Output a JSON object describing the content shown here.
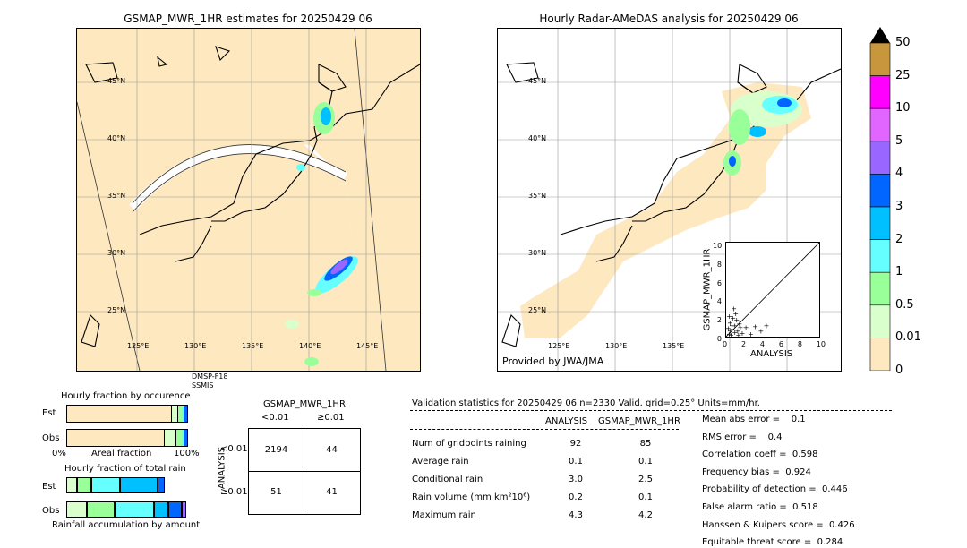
{
  "left_map": {
    "title": "GSMAP_MWR_1HR estimates for 20250429 06",
    "lat_labels": [
      "45°N",
      "40°N",
      "35°N",
      "30°N",
      "25°N"
    ],
    "lon_labels": [
      "125°E",
      "130°E",
      "135°E",
      "140°E",
      "145°E"
    ],
    "sensor_line1": "DMSP-F18",
    "sensor_line2": "SSMIS"
  },
  "right_map": {
    "title": "Hourly Radar-AMeDAS analysis for 20250429 06",
    "lat_labels": [
      "45°N",
      "40°N",
      "35°N",
      "30°N",
      "25°N"
    ],
    "lon_labels": [
      "125°E",
      "130°E",
      "135°E"
    ],
    "credit": "Provided by JWA/JMA"
  },
  "scatter": {
    "xlabel": "ANALYSIS",
    "ylabel": "GSMAP_MWR_1HR",
    "ticks": [
      "0",
      "2",
      "4",
      "6",
      "8",
      "10"
    ]
  },
  "colorbar": {
    "labels": [
      "50",
      "25",
      "10",
      "5",
      "4",
      "3",
      "2",
      "1",
      "0.5",
      "0.01",
      "0"
    ],
    "colors": [
      "#c8963c",
      "#ff00ff",
      "#e066ff",
      "#9966ff",
      "#0066ff",
      "#00c0ff",
      "#66ffff",
      "#99ff99",
      "#d9ffcc",
      "#fde8c0"
    ]
  },
  "occurrence": {
    "title": "Hourly fraction by occurence",
    "row_est": "Est",
    "row_obs": "Obs",
    "axis_left": "0%",
    "axis_mid": "Areal fraction",
    "axis_right": "100%"
  },
  "total_rain": {
    "title": "Hourly fraction of total rain",
    "row_est": "Est",
    "row_obs": "Obs",
    "axis_mid": "Rainfall accumulation by amount"
  },
  "contingency": {
    "title": "GSMAP_MWR_1HR",
    "col1": "<0.01",
    "col2": "≥0.01",
    "row_axis": "ANALYSIS",
    "row1": "<0.01",
    "row2": "≥0.01",
    "cells": [
      "2194",
      "44",
      "51",
      "41"
    ]
  },
  "validation": {
    "header": "Validation statistics for 20250429 06  n=2330 Valid. grid=0.25°  Units=mm/hr.",
    "col_analysis": "ANALYSIS",
    "col_gsmap": "GSMAP_MWR_1HR",
    "rows": [
      {
        "label": "Num of gridpoints raining",
        "a": "92",
        "g": "85"
      },
      {
        "label": "Average rain",
        "a": "0.1",
        "g": "0.1"
      },
      {
        "label": "Conditional rain",
        "a": "3.0",
        "g": "2.5"
      },
      {
        "label": "Rain volume (mm km²10⁶)",
        "a": "0.2",
        "g": "0.1"
      },
      {
        "label": "Maximum rain",
        "a": "4.3",
        "g": "4.2"
      }
    ],
    "scores": [
      "Mean abs error =    0.1",
      "RMS error =    0.4",
      "Correlation coeff =  0.598",
      "Frequency bias =  0.924",
      "Probability of detection =  0.446",
      "False alarm ratio =  0.518",
      "Hanssen & Kuipers score =  0.426",
      "Equitable threat score =  0.284"
    ]
  }
}
